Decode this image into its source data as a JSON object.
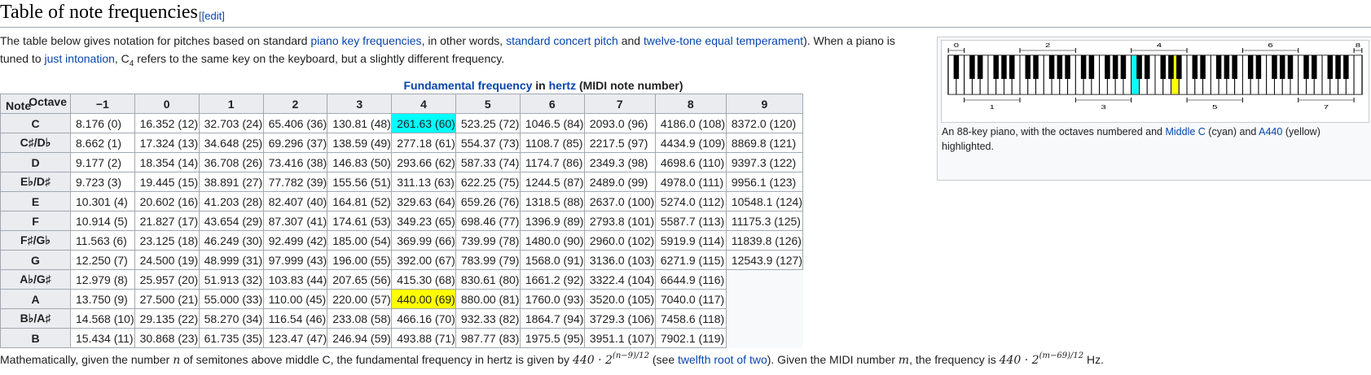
{
  "section": {
    "title": "Table of note frequencies",
    "edit_label": "[edit]"
  },
  "intro": {
    "p1": "The table below gives notation for pitches based on standard ",
    "link1": "piano key frequencies",
    "p2": ", in other words, ",
    "link2": "standard concert pitch",
    "p3": " and ",
    "link3": "twelve-tone equal temperament",
    "p4": "). When a piano is tuned to ",
    "link4": "just intonation",
    "p5": ", C",
    "sub": "4",
    "p6": " refers to the same key on the keyboard, but a slightly different frequency."
  },
  "table": {
    "caption_link1": "Fundamental frequency",
    "caption_mid": " in ",
    "caption_link2": "hertz",
    "caption_rest": " (MIDI note number)",
    "corner_octave": "Octave",
    "corner_note": "Note",
    "octaves": [
      "−1",
      "0",
      "1",
      "2",
      "3",
      "4",
      "5",
      "6",
      "7",
      "8",
      "9"
    ],
    "rows": [
      {
        "note": "C",
        "cells": [
          "8.176 (0)",
          "16.352 (12)",
          "32.703 (24)",
          "65.406 (36)",
          "130.81 (48)",
          "261.63 (60)",
          "523.25 (72)",
          "1046.5 (84)",
          "2093.0 (96)",
          "4186.0 (108)",
          "8372.0 (120)"
        ]
      },
      {
        "note": "C♯/D♭",
        "cells": [
          "8.662 (1)",
          "17.324 (13)",
          "34.648 (25)",
          "69.296 (37)",
          "138.59 (49)",
          "277.18 (61)",
          "554.37 (73)",
          "1108.7 (85)",
          "2217.5 (97)",
          "4434.9 (109)",
          "8869.8 (121)"
        ]
      },
      {
        "note": "D",
        "cells": [
          "9.177 (2)",
          "18.354 (14)",
          "36.708 (26)",
          "73.416 (38)",
          "146.83 (50)",
          "293.66 (62)",
          "587.33 (74)",
          "1174.7 (86)",
          "2349.3 (98)",
          "4698.6 (110)",
          "9397.3 (122)"
        ]
      },
      {
        "note": "E♭/D♯",
        "cells": [
          "9.723 (3)",
          "19.445 (15)",
          "38.891 (27)",
          "77.782 (39)",
          "155.56 (51)",
          "311.13 (63)",
          "622.25 (75)",
          "1244.5 (87)",
          "2489.0 (99)",
          "4978.0 (111)",
          "9956.1 (123)"
        ]
      },
      {
        "note": "E",
        "cells": [
          "10.301 (4)",
          "20.602 (16)",
          "41.203 (28)",
          "82.407 (40)",
          "164.81 (52)",
          "329.63 (64)",
          "659.26 (76)",
          "1318.5 (88)",
          "2637.0 (100)",
          "5274.0 (112)",
          "10548.1 (124)"
        ]
      },
      {
        "note": "F",
        "cells": [
          "10.914 (5)",
          "21.827 (17)",
          "43.654 (29)",
          "87.307 (41)",
          "174.61 (53)",
          "349.23 (65)",
          "698.46 (77)",
          "1396.9 (89)",
          "2793.8 (101)",
          "5587.7 (113)",
          "11175.3 (125)"
        ]
      },
      {
        "note": "F♯/G♭",
        "cells": [
          "11.563 (6)",
          "23.125 (18)",
          "46.249 (30)",
          "92.499 (42)",
          "185.00 (54)",
          "369.99 (66)",
          "739.99 (78)",
          "1480.0 (90)",
          "2960.0 (102)",
          "5919.9 (114)",
          "11839.8 (126)"
        ]
      },
      {
        "note": "G",
        "cells": [
          "12.250 (7)",
          "24.500 (19)",
          "48.999 (31)",
          "97.999 (43)",
          "196.00 (55)",
          "392.00 (67)",
          "783.99 (79)",
          "1568.0 (91)",
          "3136.0 (103)",
          "6271.9 (115)",
          "12543.9 (127)"
        ]
      },
      {
        "note": "A♭/G♯",
        "cells": [
          "12.979 (8)",
          "25.957 (20)",
          "51.913 (32)",
          "103.83 (44)",
          "207.65 (56)",
          "415.30 (68)",
          "830.61 (80)",
          "1661.2 (92)",
          "3322.4 (104)",
          "6644.9 (116)",
          ""
        ]
      },
      {
        "note": "A",
        "cells": [
          "13.750 (9)",
          "27.500 (21)",
          "55.000 (33)",
          "110.00 (45)",
          "220.00 (57)",
          "440.00 (69)",
          "880.00 (81)",
          "1760.0 (93)",
          "3520.0 (105)",
          "7040.0 (117)",
          ""
        ]
      },
      {
        "note": "B♭/A♯",
        "cells": [
          "14.568 (10)",
          "29.135 (22)",
          "58.270 (34)",
          "116.54 (46)",
          "233.08 (58)",
          "466.16 (70)",
          "932.33 (82)",
          "1864.7 (94)",
          "3729.3 (106)",
          "7458.6 (118)",
          ""
        ]
      },
      {
        "note": "B",
        "cells": [
          "15.434 (11)",
          "30.868 (23)",
          "61.735 (35)",
          "123.47 (47)",
          "246.94 (59)",
          "493.88 (71)",
          "987.77 (83)",
          "1975.5 (95)",
          "3951.1 (107)",
          "7902.1 (119)",
          ""
        ]
      }
    ],
    "highlight_colors": {
      "middle_c": "#00ffff",
      "a440": "#ffff00"
    }
  },
  "keyboard": {
    "top_numbers": [
      "0",
      "2",
      "4",
      "6",
      "8"
    ],
    "bottom_numbers": [
      "1",
      "3",
      "5",
      "7"
    ],
    "caption1": "An 88-key piano, with the octaves numbered and ",
    "caption_link1": "Middle C",
    "caption2": " (cyan) and ",
    "caption_link2": "A440",
    "caption3": " (yellow) highlighted."
  },
  "formula": {
    "t1": "Mathematically, given the number ",
    "n": "n",
    "t2": " of semitones above middle C, the fundamental frequency in hertz is given by ",
    "base1": "440 · 2",
    "exp1": "(n−9)/12",
    "t3": " (see ",
    "link": "twelfth root of two",
    "t4": "). Given the MIDI number ",
    "m": "m",
    "t5": ", the frequency is ",
    "base2": "440 · 2",
    "exp2": "(m−69)/12",
    "t6": " Hz."
  }
}
